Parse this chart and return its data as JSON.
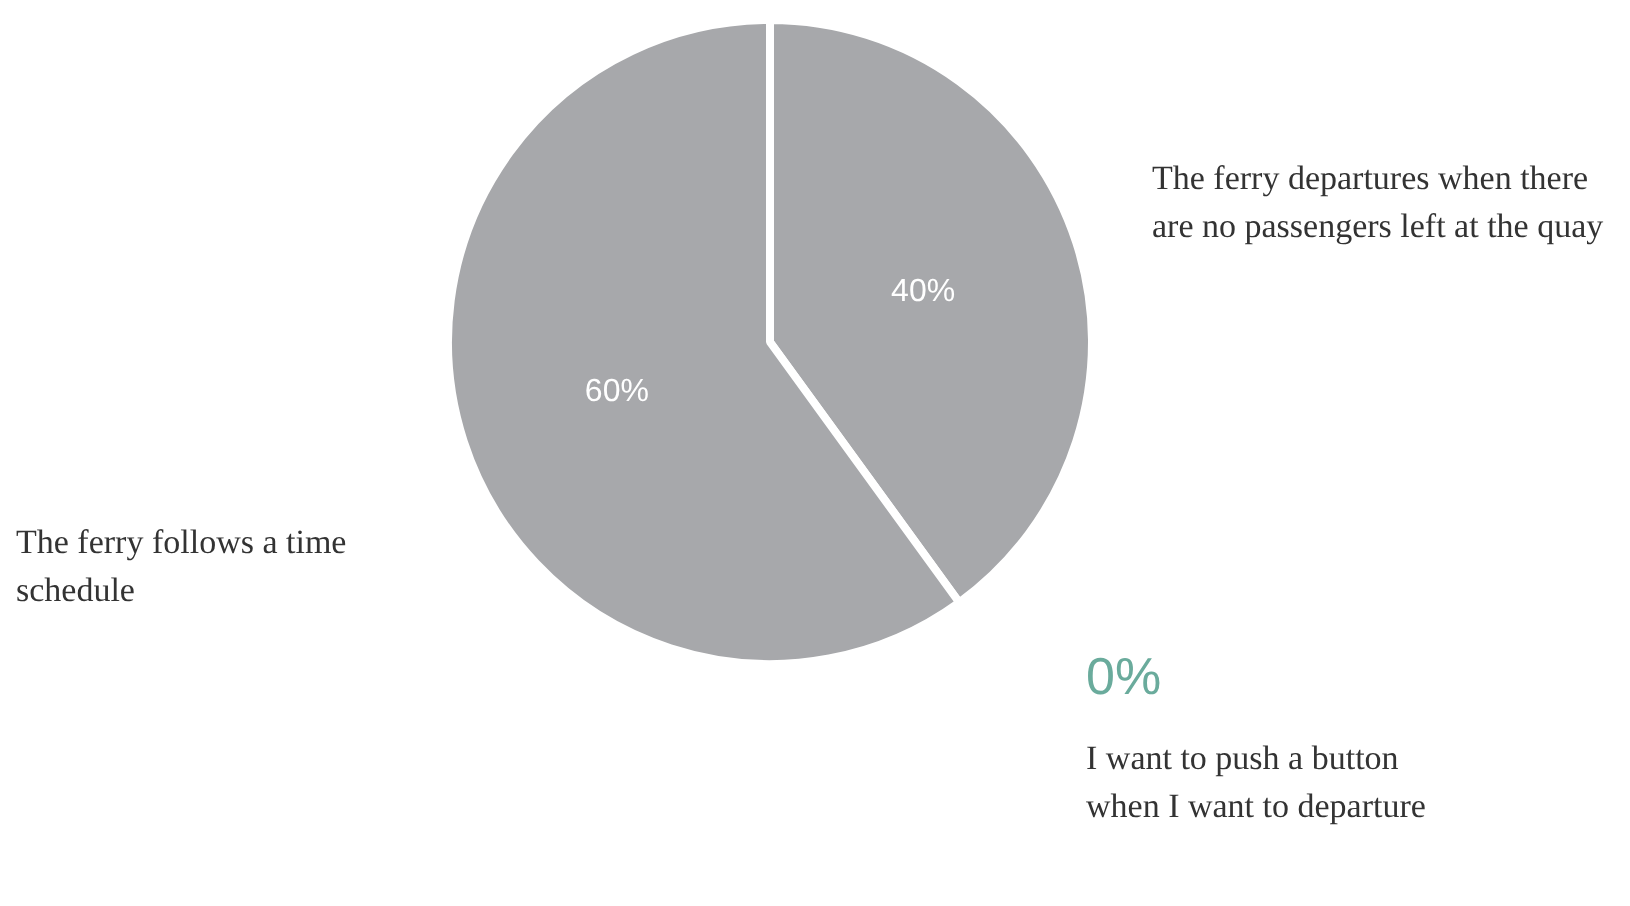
{
  "chart_data": {
    "type": "pie",
    "categories": [
      "The ferry departures when there are no passengers left at the quay",
      "The ferry follows a time schedule",
      "I want to push a button when I want to departure"
    ],
    "values": [
      40,
      60,
      0
    ],
    "colors": [
      "#a7a8ab",
      "#a7a8ab",
      "#6aab9c"
    ],
    "value_labels": [
      "40%",
      "60%",
      "0%"
    ],
    "legend": false
  }
}
